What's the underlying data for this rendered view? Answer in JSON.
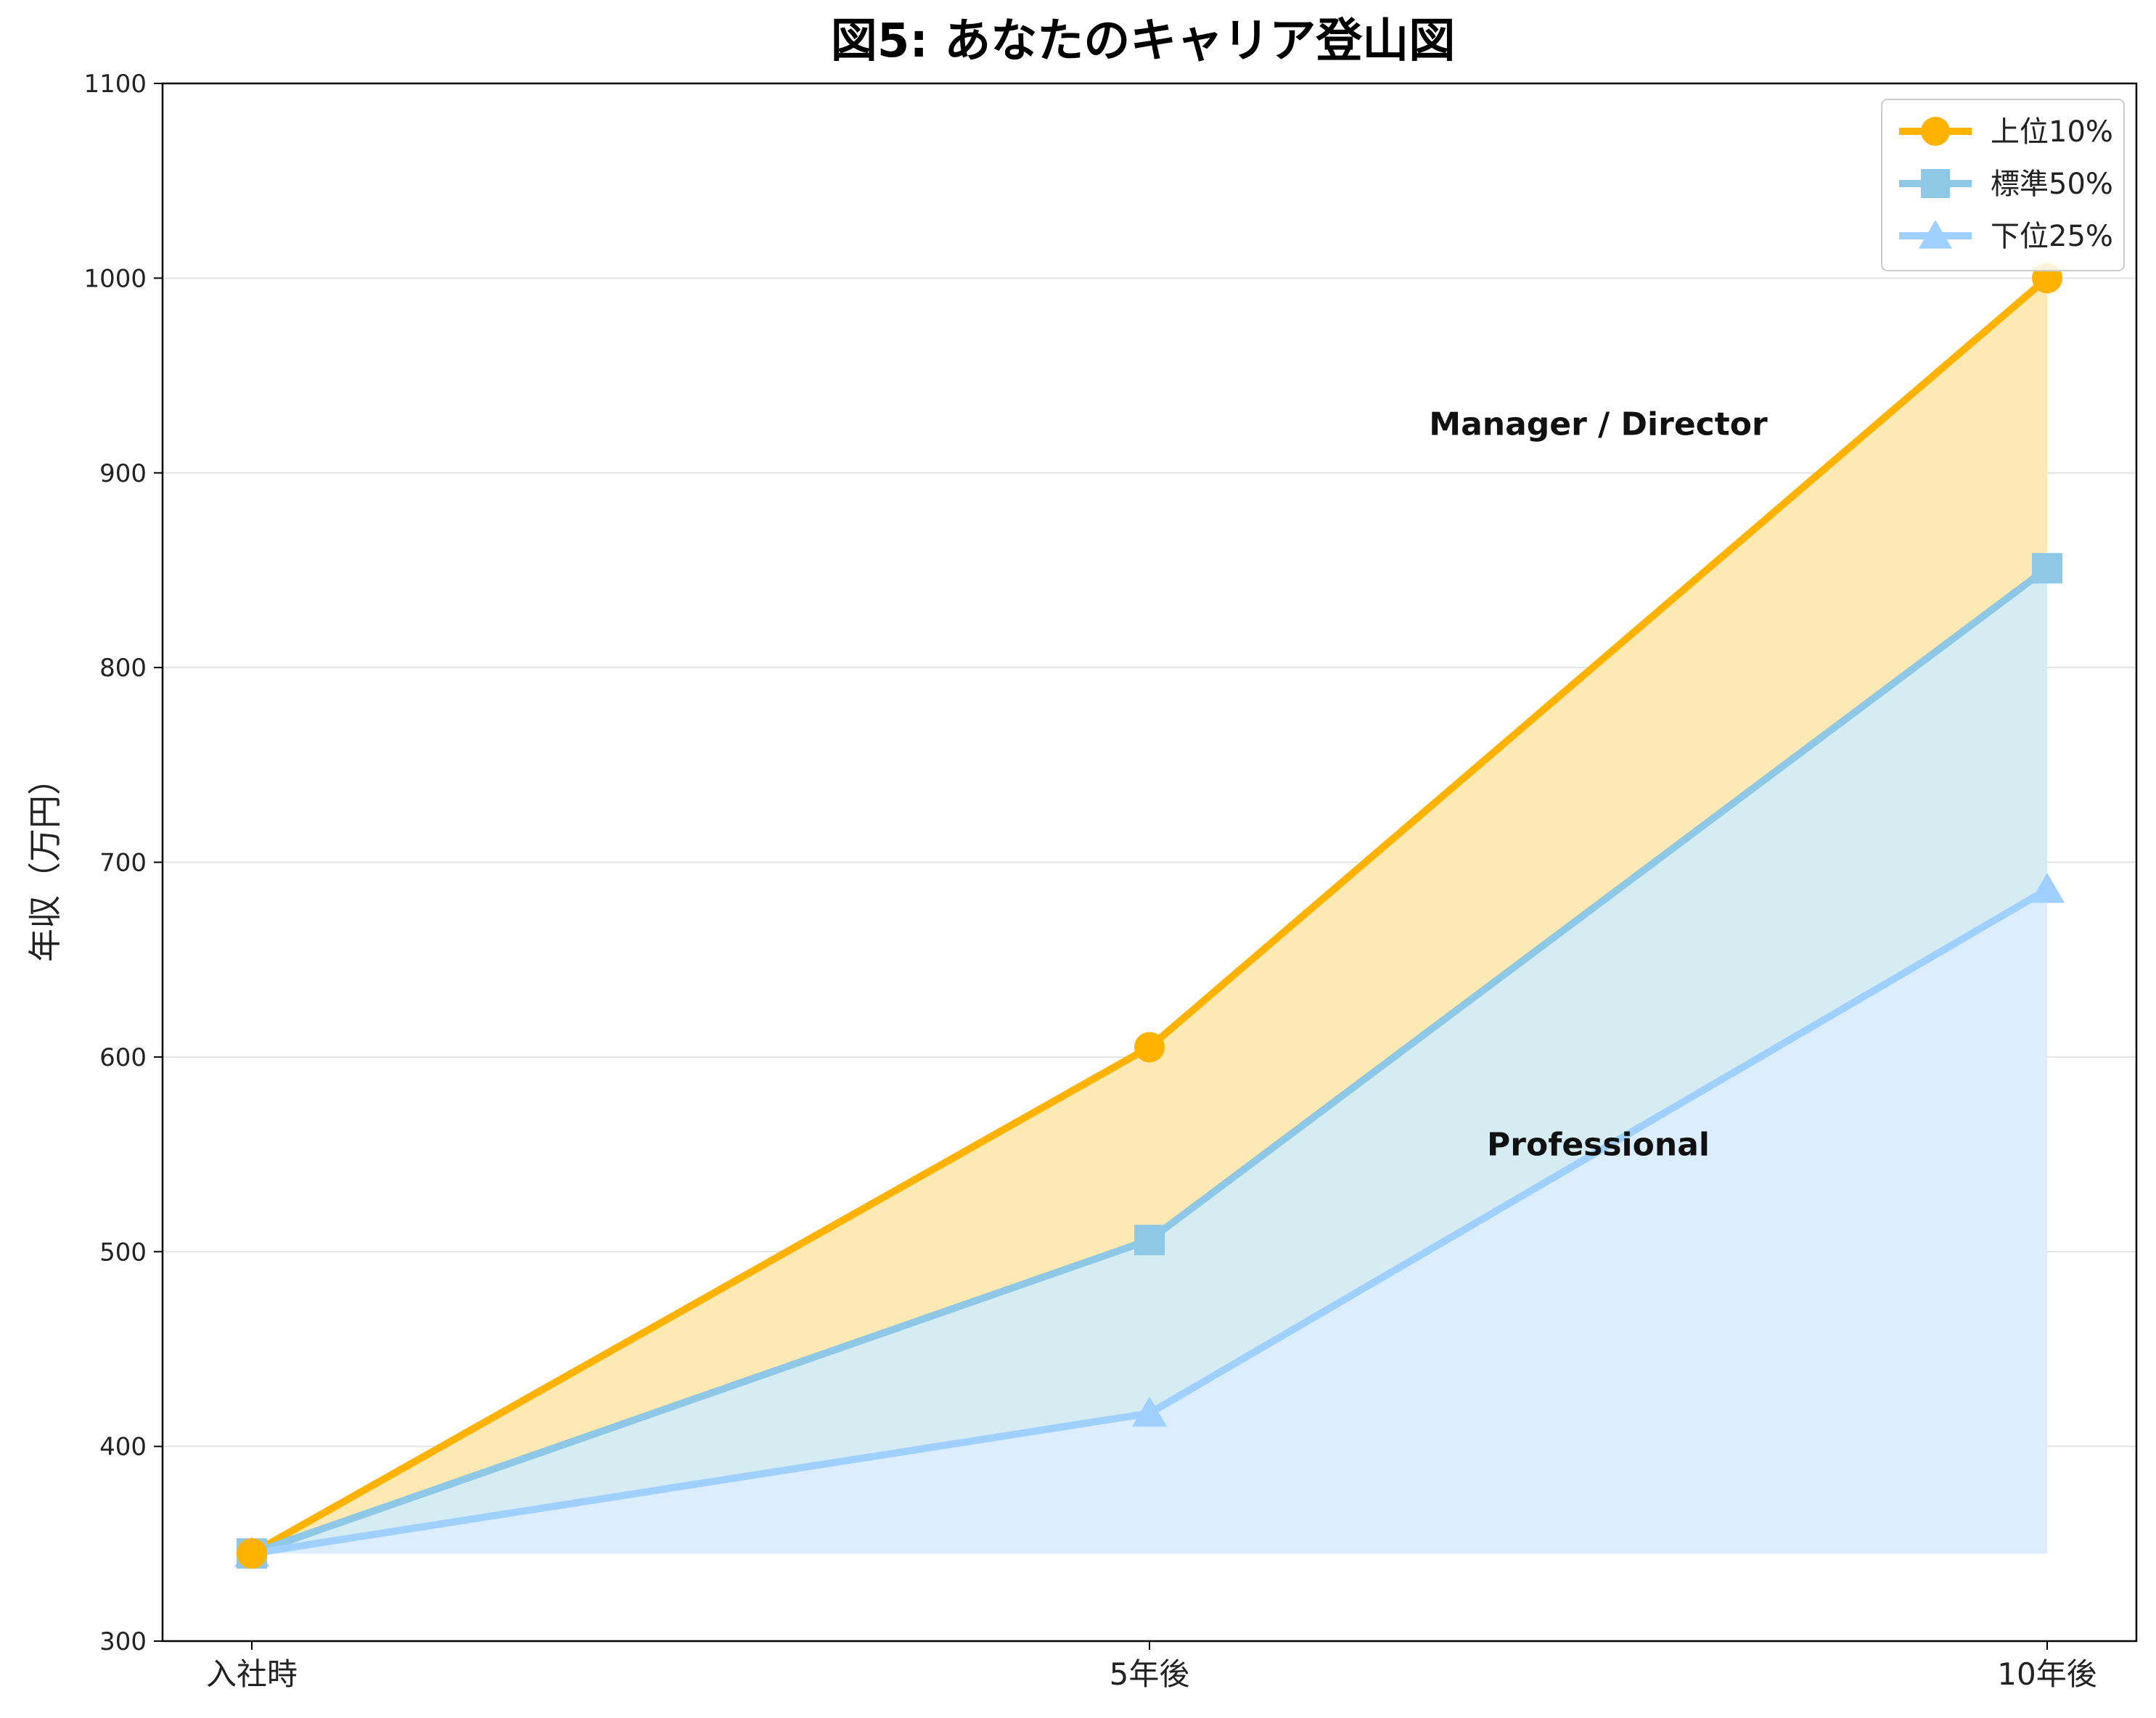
{
  "chart_data": {
    "type": "area",
    "title": "図5: あなたのキャリア登山図",
    "xlabel": "",
    "ylabel": "年収（万円）",
    "categories": [
      "入社時",
      "5年後",
      "10年後"
    ],
    "ylim": [
      300,
      1100
    ],
    "yticks": [
      300,
      400,
      500,
      600,
      700,
      800,
      900,
      1000,
      1100
    ],
    "grid": "horizontal",
    "legend_position": "top-right",
    "fill_baseline": 345,
    "series": [
      {
        "name": "上位10%",
        "values": [
          345,
          605,
          1000
        ],
        "color": "#FFB300",
        "fill": "#FDE9B3",
        "marker": "circle"
      },
      {
        "name": "標準50%",
        "values": [
          345,
          506,
          851
        ],
        "color": "#8EC8E6",
        "fill": "#D6ECF3",
        "marker": "square"
      },
      {
        "name": "下位25%",
        "values": [
          345,
          417,
          686
        ],
        "color": "#A0D0FF",
        "fill": "#DCEEFD",
        "marker": "triangle"
      }
    ],
    "annotations": [
      {
        "text": "Manager / Director",
        "x": 1.5,
        "y": 925
      },
      {
        "text": "Professional",
        "x": 1.5,
        "y": 555
      }
    ]
  }
}
